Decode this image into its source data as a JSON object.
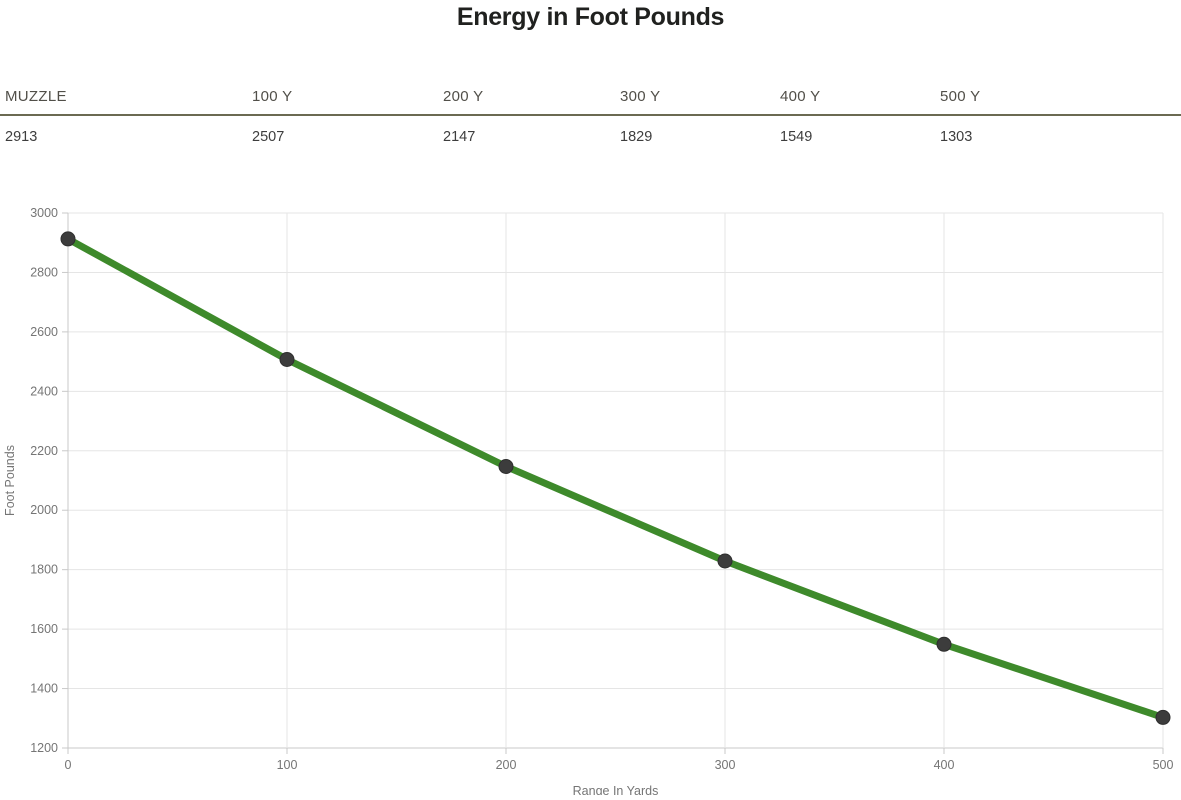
{
  "title": "Energy in Foot Pounds",
  "table": {
    "headers": [
      "MUZZLE",
      "100 Y",
      "200 Y",
      "300 Y",
      "400 Y",
      "500 Y"
    ],
    "values": [
      "2913",
      "2507",
      "2147",
      "1829",
      "1549",
      "1303"
    ]
  },
  "chart_data": {
    "type": "line",
    "x": [
      0,
      100,
      200,
      300,
      400,
      500
    ],
    "series": [
      {
        "name": "Energy in Foot Pounds",
        "values": [
          2913,
          2507,
          2147,
          1829,
          1549,
          1303
        ]
      }
    ],
    "xlabel": "Range In Yards",
    "ylabel": "Foot Pounds",
    "xlim": [
      0,
      500
    ],
    "ylim": [
      1200,
      3000
    ],
    "xtick_step": 100,
    "ytick_step": 200,
    "grid": true,
    "legend": false,
    "colors": {
      "line": "#3e8a2b",
      "marker": "#3c3c3c",
      "grid": "#e5e5e5",
      "axis": "#c9c9c9",
      "tick_label": "#757575",
      "axis_title": "#757575"
    }
  },
  "accent_rule_color": "#6b6a52"
}
